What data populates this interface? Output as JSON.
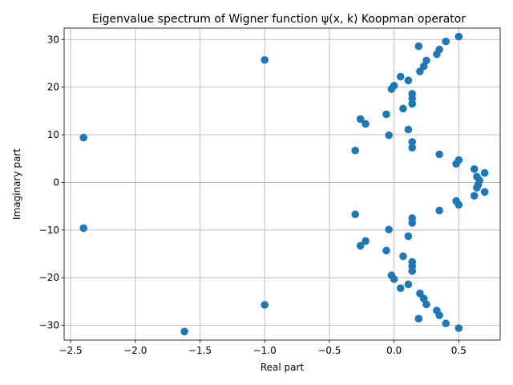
{
  "chart_data": {
    "type": "scatter",
    "title": "Eigenvalue spectrum of Wigner function ψ(x, k) Koopman operator",
    "xlabel": "Real part",
    "ylabel": "Imaginary part",
    "xlim": [
      -2.55,
      0.82
    ],
    "ylim": [
      -33.1,
      32.4
    ],
    "xticks": [
      -2.5,
      -2.0,
      -1.5,
      -1.0,
      -0.5,
      0.0,
      0.5
    ],
    "xtick_labels": [
      "−2.5",
      "−2.0",
      "−1.5",
      "−1.0",
      "−0.5",
      "0.0",
      "0.5"
    ],
    "yticks": [
      -30,
      -20,
      -10,
      0,
      10,
      20,
      30
    ],
    "ytick_labels": [
      "−30",
      "−20",
      "−10",
      "0",
      "10",
      "20",
      "30"
    ],
    "grid": true,
    "marker_color": "#1f77b4",
    "points": [
      {
        "x": 0.5,
        "y": 30.6
      },
      {
        "x": 0.4,
        "y": 29.6
      },
      {
        "x": 0.19,
        "y": 28.6
      },
      {
        "x": 0.35,
        "y": 27.9
      },
      {
        "x": 0.33,
        "y": 26.9
      },
      {
        "x": 0.25,
        "y": 25.6
      },
      {
        "x": -1.0,
        "y": 25.7
      },
      {
        "x": 0.23,
        "y": 24.4
      },
      {
        "x": 0.2,
        "y": 23.3
      },
      {
        "x": 0.05,
        "y": 22.2
      },
      {
        "x": 0.11,
        "y": 21.4
      },
      {
        "x": 0.0,
        "y": 20.3
      },
      {
        "x": -0.02,
        "y": 19.6
      },
      {
        "x": 0.14,
        "y": 18.6
      },
      {
        "x": 0.14,
        "y": 17.6
      },
      {
        "x": 0.14,
        "y": 16.5
      },
      {
        "x": 0.07,
        "y": 15.5
      },
      {
        "x": -0.06,
        "y": 14.3
      },
      {
        "x": -0.26,
        "y": 13.3
      },
      {
        "x": -0.22,
        "y": 12.3
      },
      {
        "x": 0.11,
        "y": 11.1
      },
      {
        "x": -0.04,
        "y": 9.9
      },
      {
        "x": -2.4,
        "y": 9.4
      },
      {
        "x": 0.14,
        "y": 8.5
      },
      {
        "x": 0.14,
        "y": 7.3
      },
      {
        "x": -0.3,
        "y": 6.7
      },
      {
        "x": 0.35,
        "y": 5.9
      },
      {
        "x": 0.5,
        "y": 4.7
      },
      {
        "x": 0.48,
        "y": 3.9
      },
      {
        "x": 0.62,
        "y": 2.8
      },
      {
        "x": 0.7,
        "y": 2.0
      },
      {
        "x": 0.64,
        "y": 1.2
      },
      {
        "x": 0.66,
        "y": 0.4
      },
      {
        "x": 0.65,
        "y": -0.5
      },
      {
        "x": 0.64,
        "y": -1.1
      },
      {
        "x": 0.7,
        "y": -2.0
      },
      {
        "x": 0.62,
        "y": -2.8
      },
      {
        "x": 0.48,
        "y": -3.9
      },
      {
        "x": 0.5,
        "y": -4.7
      },
      {
        "x": 0.35,
        "y": -5.9
      },
      {
        "x": -0.3,
        "y": -6.7
      },
      {
        "x": 0.14,
        "y": -7.5
      },
      {
        "x": 0.14,
        "y": -8.5
      },
      {
        "x": -2.4,
        "y": -9.6
      },
      {
        "x": -0.04,
        "y": -9.9
      },
      {
        "x": 0.11,
        "y": -11.3
      },
      {
        "x": -0.22,
        "y": -12.3
      },
      {
        "x": -0.26,
        "y": -13.3
      },
      {
        "x": -0.06,
        "y": -14.3
      },
      {
        "x": 0.07,
        "y": -15.5
      },
      {
        "x": 0.14,
        "y": -16.7
      },
      {
        "x": 0.14,
        "y": -17.6
      },
      {
        "x": 0.14,
        "y": -18.6
      },
      {
        "x": -0.02,
        "y": -19.5
      },
      {
        "x": 0.0,
        "y": -20.3
      },
      {
        "x": 0.11,
        "y": -21.4
      },
      {
        "x": 0.05,
        "y": -22.2
      },
      {
        "x": 0.2,
        "y": -23.3
      },
      {
        "x": 0.23,
        "y": -24.4
      },
      {
        "x": 0.25,
        "y": -25.6
      },
      {
        "x": -1.0,
        "y": -25.7
      },
      {
        "x": 0.33,
        "y": -26.9
      },
      {
        "x": 0.35,
        "y": -27.9
      },
      {
        "x": 0.19,
        "y": -28.6
      },
      {
        "x": 0.4,
        "y": -29.6
      },
      {
        "x": 0.5,
        "y": -30.6
      },
      {
        "x": -1.62,
        "y": -31.3
      }
    ]
  }
}
